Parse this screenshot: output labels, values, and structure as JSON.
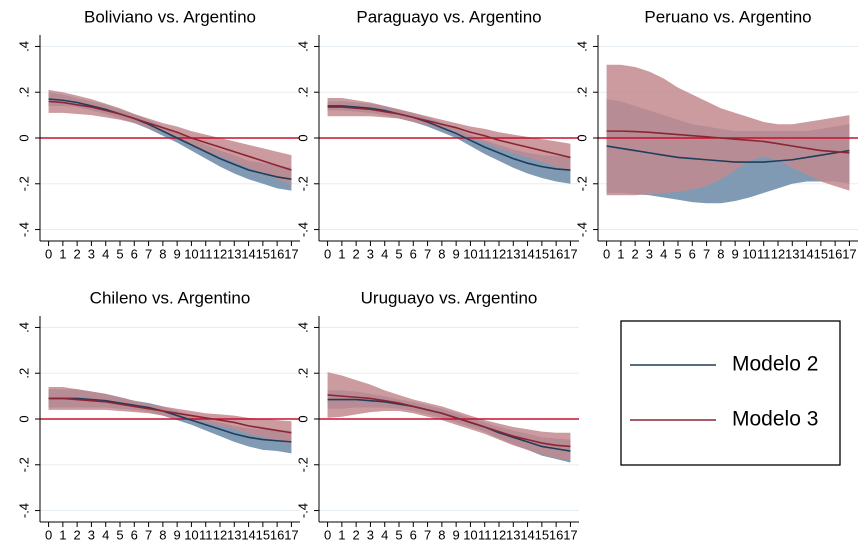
{
  "chart_data": [
    {
      "type": "line",
      "title": "Boliviano vs. Argentino",
      "x": [
        0,
        1,
        2,
        3,
        4,
        5,
        6,
        7,
        8,
        9,
        10,
        11,
        12,
        13,
        14,
        15,
        16,
        17
      ],
      "series": [
        {
          "name": "Modelo 2",
          "color": "#1f3d5c",
          "band_color": "#819ab3",
          "values": [
            0.17,
            0.165,
            0.155,
            0.14,
            0.125,
            0.105,
            0.085,
            0.06,
            0.03,
            0,
            -0.03,
            -0.06,
            -0.09,
            -0.115,
            -0.14,
            -0.155,
            -0.17,
            -0.18
          ],
          "lower": [
            0.14,
            0.14,
            0.135,
            0.12,
            0.105,
            0.085,
            0.065,
            0.04,
            0.01,
            -0.02,
            -0.055,
            -0.09,
            -0.125,
            -0.155,
            -0.18,
            -0.2,
            -0.22,
            -0.23
          ],
          "upper": [
            0.2,
            0.19,
            0.175,
            0.16,
            0.145,
            0.125,
            0.105,
            0.08,
            0.05,
            0.02,
            -0.005,
            -0.03,
            -0.055,
            -0.075,
            -0.1,
            -0.11,
            -0.12,
            -0.13
          ]
        },
        {
          "name": "Modelo 3",
          "color": "#8b2535",
          "band_color": "#c28a8e",
          "values": [
            0.16,
            0.155,
            0.145,
            0.135,
            0.12,
            0.105,
            0.085,
            0.065,
            0.045,
            0.025,
            0,
            -0.02,
            -0.04,
            -0.06,
            -0.08,
            -0.1,
            -0.12,
            -0.14
          ],
          "lower": [
            0.11,
            0.11,
            0.105,
            0.1,
            0.09,
            0.08,
            0.065,
            0.045,
            0.025,
            0,
            -0.03,
            -0.055,
            -0.08,
            -0.105,
            -0.13,
            -0.155,
            -0.18,
            -0.205
          ],
          "upper": [
            0.21,
            0.2,
            0.185,
            0.17,
            0.15,
            0.13,
            0.105,
            0.085,
            0.065,
            0.05,
            0.03,
            0.015,
            0,
            -0.015,
            -0.03,
            -0.045,
            -0.06,
            -0.075
          ]
        }
      ],
      "xlim": [
        -0.6,
        17.6
      ],
      "xticks": [
        0,
        1,
        2,
        3,
        4,
        5,
        6,
        7,
        8,
        9,
        10,
        11,
        12,
        13,
        14,
        15,
        16,
        17
      ],
      "ylim": [
        -0.45,
        0.45
      ],
      "yticks": [
        {
          "value": -0.4,
          "label": "-.4"
        },
        {
          "value": -0.2,
          "label": "-.2"
        },
        0,
        {
          "value": 0.2,
          "label": ".2"
        },
        {
          "value": 0.4,
          "label": ".4"
        }
      ],
      "grid": true,
      "reference_line": {
        "value": 0,
        "color": "#c8102e"
      }
    },
    {
      "type": "line",
      "title": "Paraguayo vs. Argentino",
      "x": [
        0,
        1,
        2,
        3,
        4,
        5,
        6,
        7,
        8,
        9,
        10,
        11,
        12,
        13,
        14,
        15,
        16,
        17
      ],
      "series": [
        {
          "name": "Modelo 2",
          "color": "#1f3d5c",
          "band_color": "#819ab3",
          "values": [
            0.14,
            0.14,
            0.135,
            0.13,
            0.12,
            0.105,
            0.09,
            0.07,
            0.045,
            0.02,
            -0.01,
            -0.04,
            -0.065,
            -0.09,
            -0.11,
            -0.125,
            -0.135,
            -0.14
          ],
          "lower": [
            0.12,
            0.12,
            0.115,
            0.11,
            0.1,
            0.085,
            0.07,
            0.05,
            0.025,
            0,
            -0.035,
            -0.07,
            -0.1,
            -0.13,
            -0.155,
            -0.175,
            -0.19,
            -0.2
          ],
          "upper": [
            0.16,
            0.16,
            0.155,
            0.15,
            0.14,
            0.125,
            0.11,
            0.09,
            0.065,
            0.04,
            0.015,
            -0.01,
            -0.03,
            -0.05,
            -0.065,
            -0.075,
            -0.08,
            -0.08
          ]
        },
        {
          "name": "Modelo 3",
          "color": "#8b2535",
          "band_color": "#c28a8e",
          "values": [
            0.135,
            0.135,
            0.13,
            0.125,
            0.115,
            0.105,
            0.09,
            0.075,
            0.06,
            0.045,
            0.025,
            0.01,
            -0.01,
            -0.025,
            -0.04,
            -0.055,
            -0.07,
            -0.085
          ],
          "lower": [
            0.095,
            0.095,
            0.095,
            0.095,
            0.09,
            0.085,
            0.07,
            0.055,
            0.04,
            0.025,
            0,
            -0.02,
            -0.045,
            -0.065,
            -0.085,
            -0.105,
            -0.125,
            -0.145
          ],
          "upper": [
            0.175,
            0.175,
            0.165,
            0.155,
            0.14,
            0.125,
            0.11,
            0.095,
            0.08,
            0.065,
            0.05,
            0.04,
            0.025,
            0.015,
            0.005,
            -0.005,
            -0.015,
            -0.025
          ]
        }
      ],
      "xlim": [
        -0.6,
        17.6
      ],
      "xticks": [
        0,
        1,
        2,
        3,
        4,
        5,
        6,
        7,
        8,
        9,
        10,
        11,
        12,
        13,
        14,
        15,
        16,
        17
      ],
      "ylim": [
        -0.45,
        0.45
      ],
      "yticks": [
        {
          "value": -0.4,
          "label": "-.4"
        },
        {
          "value": -0.2,
          "label": "-.2"
        },
        0,
        {
          "value": 0.2,
          "label": ".2"
        },
        {
          "value": 0.4,
          "label": ".4"
        }
      ],
      "grid": true,
      "reference_line": {
        "value": 0,
        "color": "#c8102e"
      }
    },
    {
      "type": "line",
      "title": "Peruano vs. Argentino",
      "x": [
        0,
        1,
        2,
        3,
        4,
        5,
        6,
        7,
        8,
        9,
        10,
        11,
        12,
        13,
        14,
        15,
        16,
        17
      ],
      "series": [
        {
          "name": "Modelo 2",
          "color": "#1f3d5c",
          "band_color": "#819ab3",
          "values": [
            -0.035,
            -0.045,
            -0.055,
            -0.065,
            -0.075,
            -0.085,
            -0.09,
            -0.095,
            -0.1,
            -0.105,
            -0.105,
            -0.105,
            -0.1,
            -0.095,
            -0.085,
            -0.075,
            -0.065,
            -0.055
          ],
          "lower": [
            -0.24,
            -0.24,
            -0.245,
            -0.25,
            -0.26,
            -0.27,
            -0.28,
            -0.285,
            -0.285,
            -0.275,
            -0.26,
            -0.24,
            -0.22,
            -0.2,
            -0.19,
            -0.19,
            -0.19,
            -0.2
          ],
          "upper": [
            0.17,
            0.16,
            0.14,
            0.12,
            0.1,
            0.08,
            0.06,
            0.05,
            0.04,
            0.03,
            0.03,
            0.03,
            0.03,
            0.03,
            0.03,
            0.04,
            0.05,
            0.06
          ]
        },
        {
          "name": "Modelo 3",
          "color": "#8b2535",
          "band_color": "#c28a8e",
          "values": [
            0.03,
            0.03,
            0.028,
            0.025,
            0.02,
            0.015,
            0.01,
            0.005,
            0,
            -0.005,
            -0.01,
            -0.015,
            -0.025,
            -0.035,
            -0.045,
            -0.055,
            -0.06,
            -0.065
          ],
          "lower": [
            -0.25,
            -0.25,
            -0.25,
            -0.245,
            -0.24,
            -0.235,
            -0.225,
            -0.21,
            -0.18,
            -0.14,
            -0.1,
            -0.08,
            -0.1,
            -0.13,
            -0.16,
            -0.19,
            -0.21,
            -0.23
          ],
          "upper": [
            0.32,
            0.32,
            0.31,
            0.29,
            0.26,
            0.22,
            0.19,
            0.16,
            0.13,
            0.11,
            0.09,
            0.07,
            0.06,
            0.06,
            0.07,
            0.08,
            0.09,
            0.1
          ]
        }
      ],
      "xlim": [
        -0.6,
        17.6
      ],
      "xticks": [
        0,
        1,
        2,
        3,
        4,
        5,
        6,
        7,
        8,
        9,
        10,
        11,
        12,
        13,
        14,
        15,
        16,
        17
      ],
      "ylim": [
        -0.45,
        0.45
      ],
      "yticks": [
        {
          "value": -0.4,
          "label": "-.4"
        },
        {
          "value": -0.2,
          "label": "-.2"
        },
        0,
        {
          "value": 0.2,
          "label": ".2"
        },
        {
          "value": 0.4,
          "label": ".4"
        }
      ],
      "grid": true,
      "reference_line": {
        "value": 0,
        "color": "#c8102e"
      }
    },
    {
      "type": "line",
      "title": "Chileno vs. Argentino",
      "x": [
        0,
        1,
        2,
        3,
        4,
        5,
        6,
        7,
        8,
        9,
        10,
        11,
        12,
        13,
        14,
        15,
        16,
        17
      ],
      "series": [
        {
          "name": "Modelo 2",
          "color": "#1f3d5c",
          "band_color": "#819ab3",
          "values": [
            0.09,
            0.09,
            0.09,
            0.085,
            0.08,
            0.07,
            0.06,
            0.05,
            0.035,
            0.015,
            -0.005,
            -0.025,
            -0.045,
            -0.065,
            -0.08,
            -0.09,
            -0.095,
            -0.1
          ],
          "lower": [
            0.05,
            0.05,
            0.05,
            0.05,
            0.05,
            0.045,
            0.04,
            0.03,
            0.015,
            -0.005,
            -0.025,
            -0.05,
            -0.075,
            -0.1,
            -0.12,
            -0.135,
            -0.14,
            -0.15
          ],
          "upper": [
            0.13,
            0.13,
            0.13,
            0.12,
            0.11,
            0.095,
            0.08,
            0.07,
            0.055,
            0.035,
            0.015,
            0,
            -0.015,
            -0.03,
            -0.04,
            -0.045,
            -0.05,
            -0.05
          ]
        },
        {
          "name": "Modelo 3",
          "color": "#8b2535",
          "band_color": "#c28a8e",
          "values": [
            0.09,
            0.09,
            0.085,
            0.08,
            0.075,
            0.065,
            0.055,
            0.045,
            0.035,
            0.025,
            0.015,
            0.005,
            -0.005,
            -0.015,
            -0.03,
            -0.04,
            -0.05,
            -0.06
          ],
          "lower": [
            0.04,
            0.04,
            0.04,
            0.04,
            0.04,
            0.035,
            0.03,
            0.025,
            0.015,
            0.005,
            -0.005,
            -0.015,
            -0.03,
            -0.045,
            -0.065,
            -0.08,
            -0.095,
            -0.11
          ],
          "upper": [
            0.14,
            0.14,
            0.13,
            0.12,
            0.11,
            0.095,
            0.08,
            0.065,
            0.055,
            0.045,
            0.035,
            0.025,
            0.02,
            0.015,
            0.005,
            0,
            -0.005,
            -0.01
          ]
        }
      ],
      "xlim": [
        -0.6,
        17.6
      ],
      "xticks": [
        0,
        1,
        2,
        3,
        4,
        5,
        6,
        7,
        8,
        9,
        10,
        11,
        12,
        13,
        14,
        15,
        16,
        17
      ],
      "ylim": [
        -0.45,
        0.45
      ],
      "yticks": [
        {
          "value": -0.4,
          "label": "-.4"
        },
        {
          "value": -0.2,
          "label": "-.2"
        },
        0,
        {
          "value": 0.2,
          "label": ".2"
        },
        {
          "value": 0.4,
          "label": ".4"
        }
      ],
      "grid": true,
      "reference_line": {
        "value": 0,
        "color": "#c8102e"
      }
    },
    {
      "type": "line",
      "title": "Uruguayo vs. Argentino",
      "x": [
        0,
        1,
        2,
        3,
        4,
        5,
        6,
        7,
        8,
        9,
        10,
        11,
        12,
        13,
        14,
        15,
        16,
        17
      ],
      "series": [
        {
          "name": "Modelo 2",
          "color": "#1f3d5c",
          "band_color": "#819ab3",
          "values": [
            0.085,
            0.085,
            0.085,
            0.08,
            0.075,
            0.065,
            0.055,
            0.04,
            0.025,
            0.005,
            -0.015,
            -0.035,
            -0.06,
            -0.08,
            -0.1,
            -0.12,
            -0.13,
            -0.14
          ],
          "lower": [
            0.045,
            0.045,
            0.05,
            0.05,
            0.05,
            0.045,
            0.035,
            0.02,
            0.005,
            -0.015,
            -0.035,
            -0.055,
            -0.085,
            -0.11,
            -0.135,
            -0.16,
            -0.175,
            -0.19
          ],
          "upper": [
            0.125,
            0.125,
            0.12,
            0.11,
            0.1,
            0.085,
            0.075,
            0.06,
            0.045,
            0.025,
            0.005,
            -0.015,
            -0.035,
            -0.05,
            -0.065,
            -0.08,
            -0.085,
            -0.09
          ]
        },
        {
          "name": "Modelo 3",
          "color": "#8b2535",
          "band_color": "#c28a8e",
          "values": [
            0.105,
            0.1,
            0.095,
            0.09,
            0.08,
            0.07,
            0.055,
            0.04,
            0.025,
            0.005,
            -0.015,
            -0.035,
            -0.055,
            -0.075,
            -0.09,
            -0.105,
            -0.115,
            -0.12
          ],
          "lower": [
            0.005,
            0.01,
            0.02,
            0.03,
            0.035,
            0.035,
            0.025,
            0.01,
            -0.005,
            -0.025,
            -0.045,
            -0.065,
            -0.09,
            -0.115,
            -0.135,
            -0.155,
            -0.17,
            -0.18
          ],
          "upper": [
            0.205,
            0.19,
            0.17,
            0.15,
            0.125,
            0.105,
            0.085,
            0.07,
            0.055,
            0.035,
            0.015,
            -0.005,
            -0.02,
            -0.035,
            -0.045,
            -0.055,
            -0.06,
            -0.06
          ]
        }
      ],
      "xlim": [
        -0.6,
        17.6
      ],
      "xticks": [
        0,
        1,
        2,
        3,
        4,
        5,
        6,
        7,
        8,
        9,
        10,
        11,
        12,
        13,
        14,
        15,
        16,
        17
      ],
      "ylim": [
        -0.45,
        0.45
      ],
      "yticks": [
        {
          "value": -0.4,
          "label": "-.4"
        },
        {
          "value": -0.2,
          "label": "-.2"
        },
        0,
        {
          "value": 0.2,
          "label": ".2"
        },
        {
          "value": 0.4,
          "label": ".4"
        }
      ],
      "grid": true,
      "reference_line": {
        "value": 0,
        "color": "#c8102e"
      }
    }
  ]
}
